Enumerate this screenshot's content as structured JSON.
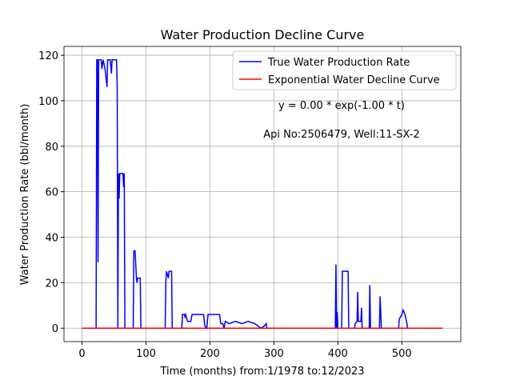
{
  "chart_data": {
    "type": "line",
    "title": "Water Production Decline Curve",
    "xlabel": "Time (months) from:1/1978 to:12/2023",
    "ylabel": "Water Production Rate (bbl/month)",
    "annotations": [
      "y = 0.00 * exp(-1.00 * t)",
      "Api No:2506479, Well:11-SX-2"
    ],
    "legend": "upper right",
    "grid": true,
    "xlim": [
      -28.2,
      592.2
    ],
    "ylim": [
      -5.9,
      123.9
    ],
    "xticks": [
      0,
      100,
      200,
      300,
      400,
      500
    ],
    "yticks": [
      0,
      20,
      40,
      60,
      80,
      100,
      120
    ],
    "series": [
      {
        "name": "True Water Production Rate",
        "color": "#0000ff",
        "x": [
          0,
          22,
          23,
          24,
          25,
          26,
          30,
          31,
          33,
          36,
          39,
          40,
          44,
          46,
          47,
          54,
          55,
          56,
          57,
          58,
          59,
          64,
          65,
          66,
          67,
          80,
          81,
          83,
          85,
          86,
          87,
          91,
          92,
          130,
          131,
          132,
          135,
          136,
          140,
          141,
          156,
          157,
          160,
          161,
          162,
          165,
          170,
          172,
          190,
          192,
          195,
          197,
          215,
          217,
          220,
          222,
          224,
          230,
          240,
          250,
          260,
          270,
          280,
          285,
          288,
          289,
          396,
          397,
          398,
          399,
          400,
          406,
          407,
          416,
          417,
          426,
          427,
          430,
          431,
          432,
          436,
          437,
          438,
          449,
          450,
          451,
          465,
          466,
          468,
          495,
          496,
          500,
          502,
          505,
          508,
          509,
          564
        ],
        "values": [
          0,
          0,
          118,
          118,
          29,
          118,
          118,
          114,
          118,
          114,
          106,
          118,
          118,
          112,
          118,
          118,
          106,
          0,
          68,
          57,
          68,
          68,
          62,
          68,
          0,
          0,
          34,
          34,
          22,
          20,
          22,
          22,
          0,
          0,
          20,
          25,
          22,
          25,
          25,
          0,
          0,
          6,
          6,
          5,
          6,
          3,
          3,
          6,
          6,
          1,
          0,
          6,
          6,
          2,
          2,
          0,
          3,
          2,
          3,
          2,
          3,
          2,
          0,
          1,
          2,
          0,
          0,
          28,
          0,
          7,
          0,
          0,
          25,
          25,
          0,
          0,
          2,
          3,
          16,
          3,
          3,
          9,
          0,
          0,
          19,
          0,
          0,
          14,
          0,
          0,
          4,
          6,
          8,
          6,
          2,
          0,
          0
        ]
      },
      {
        "name": "Exponential Water Decline Curve",
        "color": "#ff0000",
        "x": [
          0,
          564
        ],
        "values": [
          0,
          0
        ]
      }
    ]
  }
}
